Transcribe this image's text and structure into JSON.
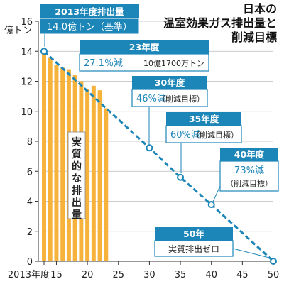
{
  "chart_data": {
    "type": "bar",
    "title_lines": [
      "日本の",
      "温室効果ガス排出量と",
      "削減目標"
    ],
    "ylabel": "億トン",
    "ylim": [
      0,
      16
    ],
    "yticks": [
      0,
      2,
      4,
      6,
      8,
      10,
      12,
      14,
      16
    ],
    "xlim": [
      2013,
      2050
    ],
    "xticks": [
      {
        "year": 2013,
        "label": "2013年度"
      },
      {
        "year": 2015,
        "label": "15"
      },
      {
        "year": 2020,
        "label": "20"
      },
      {
        "year": 2025,
        "label": "25"
      },
      {
        "year": 2030,
        "label": "30"
      },
      {
        "year": 2035,
        "label": "35"
      },
      {
        "year": 2040,
        "label": "40"
      },
      {
        "year": 2045,
        "label": "45"
      },
      {
        "year": 2050,
        "label": "50"
      }
    ],
    "bar_series_label": "実質的な排出量",
    "bar_color": "#f7b23b",
    "bars": [
      {
        "year": 2013,
        "value": 14.0
      },
      {
        "year": 2014,
        "value": 13.6
      },
      {
        "year": 2015,
        "value": 13.1
      },
      {
        "year": 2016,
        "value": 12.9
      },
      {
        "year": 2017,
        "value": 12.8
      },
      {
        "year": 2018,
        "value": 12.4
      },
      {
        "year": 2019,
        "value": 12.0
      },
      {
        "year": 2020,
        "value": 11.5
      },
      {
        "year": 2021,
        "value": 11.7
      },
      {
        "year": 2022,
        "value": 11.4
      },
      {
        "year": 2023,
        "value": 10.2
      }
    ],
    "target_line_color": "#1d86b8",
    "target_points": [
      {
        "year": 2013,
        "value": 14.0
      },
      {
        "year": 2030,
        "value": 7.56
      },
      {
        "year": 2035,
        "value": 5.6
      },
      {
        "year": 2040,
        "value": 3.78
      },
      {
        "year": 2050,
        "value": 0
      }
    ]
  },
  "annotations": {
    "base": {
      "head": "2013年度排出量",
      "value": "14.0億トン（基準）"
    },
    "y2023": {
      "head": "23年度",
      "value": "27.1％減",
      "note": "10億1700万トン"
    },
    "y2030": {
      "head": "30年度",
      "value": "46%減",
      "note": "（削減目標）"
    },
    "y2035": {
      "head": "35年度",
      "value": "60%減",
      "note": "（削減目標）"
    },
    "y2040": {
      "head": "40年度",
      "value": "73%減",
      "note": "（削減目標）"
    },
    "y2050": {
      "head": "50年",
      "value": "実質排出ゼロ"
    }
  }
}
